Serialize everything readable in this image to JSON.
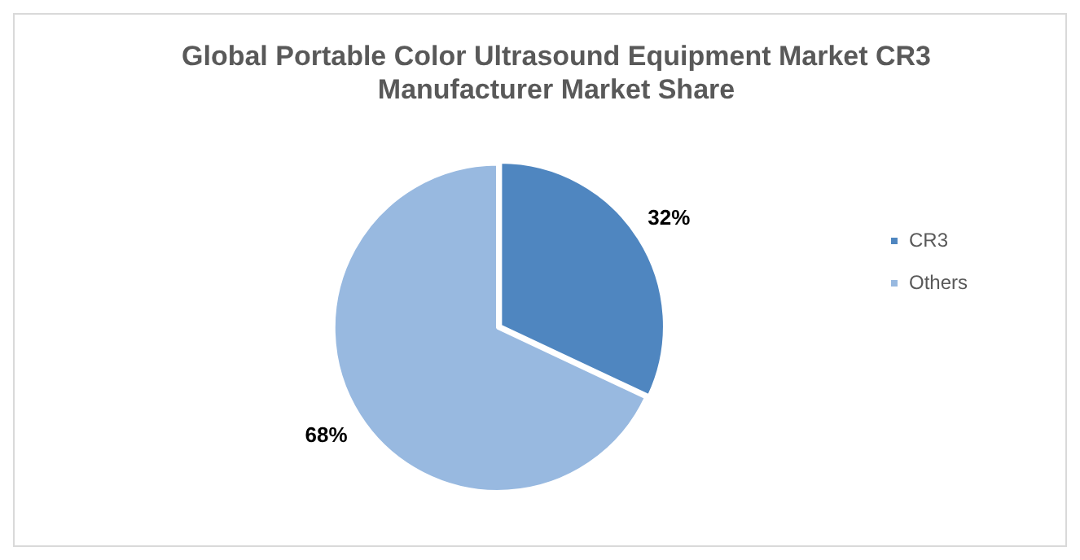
{
  "chart_data": {
    "type": "pie",
    "title": "Global Portable Color Ultrasound Equipment Market CR3 Manufacturer Market Share",
    "categories": [
      "CR3",
      "Others"
    ],
    "values": [
      32,
      68
    ],
    "colors": [
      "#4f86c0",
      "#98b9e0"
    ],
    "value_labels": [
      "32%",
      "68%"
    ],
    "legend": "right"
  }
}
